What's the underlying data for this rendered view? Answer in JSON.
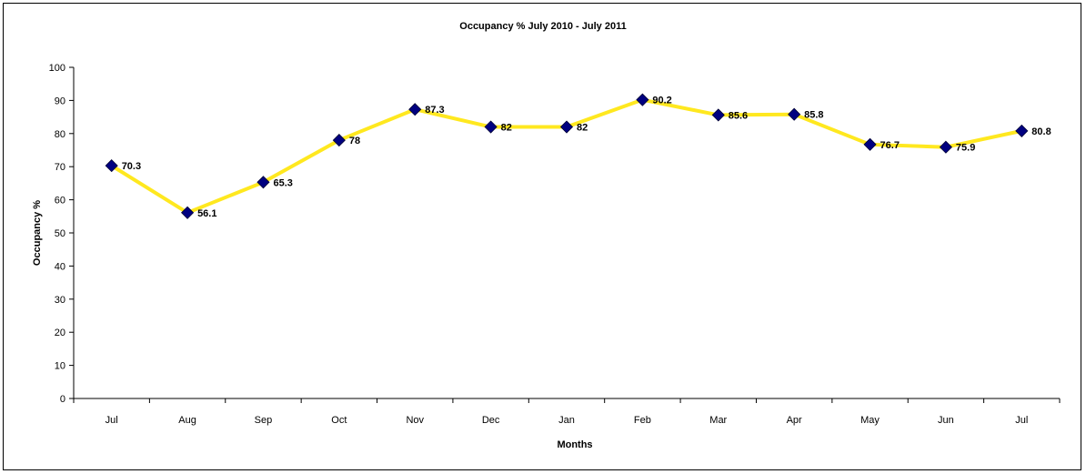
{
  "chart_data": {
    "type": "line",
    "title": "Occupancy %  July 2010 - July 2011",
    "xlabel": "Months",
    "ylabel": "Occupancy %",
    "categories": [
      "Jul",
      "Aug",
      "Sep",
      "Oct",
      "Nov",
      "Dec",
      "Jan",
      "Feb",
      "Mar",
      "Apr",
      "May",
      "Jun",
      "Jul"
    ],
    "series": [
      {
        "values": [
          70.3,
          56.1,
          65.3,
          78,
          87.3,
          82,
          82,
          90.2,
          85.6,
          85.8,
          76.7,
          75.9,
          80.8
        ]
      }
    ],
    "data_labels": [
      "70.3",
      "56.1",
      "65.3",
      "78",
      "87.3",
      "82",
      "82",
      "90.2",
      "85.6",
      "85.8",
      "76.7",
      "75.9",
      "80.8"
    ],
    "ylim": [
      0,
      100
    ],
    "yticks": [
      "0",
      "10",
      "20",
      "30",
      "40",
      "50",
      "60",
      "70",
      "80",
      "90",
      "100"
    ],
    "grid": false,
    "legend": "none",
    "colors": {
      "line": "#FFE81F",
      "marker": "#000080",
      "axis": "#000000"
    }
  }
}
